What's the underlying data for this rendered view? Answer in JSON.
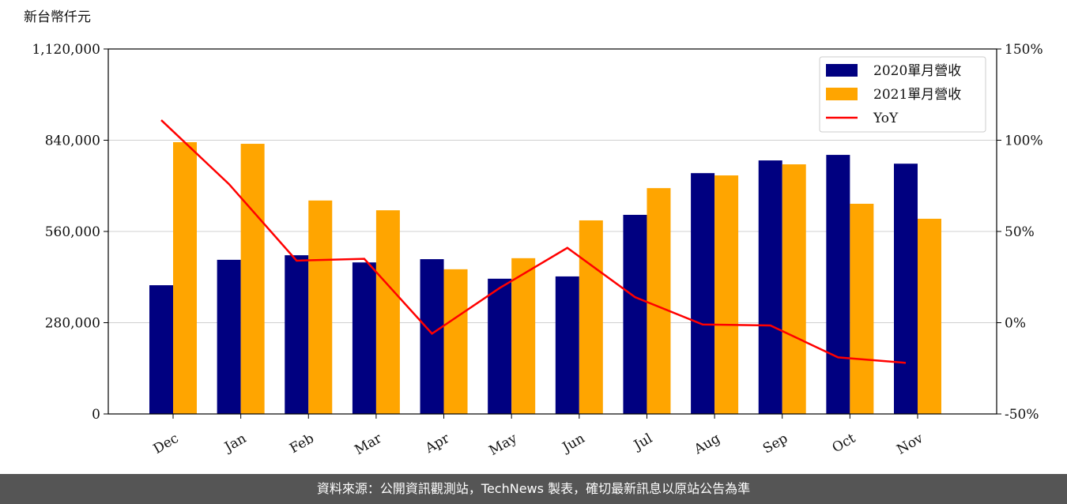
{
  "chart_data": {
    "type": "bar_line",
    "y_label": "新台幣仟元",
    "categories": [
      "Dec",
      "Jan",
      "Feb",
      "Mar",
      "Apr",
      "May",
      "Jun",
      "Jul",
      "Aug",
      "Sep",
      "Oct",
      "Nov"
    ],
    "series": [
      {
        "name": "2020單月營收",
        "color": "#000080",
        "type": "bar",
        "values": [
          395000,
          473000,
          487000,
          465000,
          475000,
          415000,
          422000,
          611000,
          739000,
          778000,
          795000,
          768000
        ]
      },
      {
        "name": "2021單月營收",
        "color": "#ffa500",
        "type": "bar",
        "values": [
          834000,
          829000,
          655000,
          625000,
          444000,
          478000,
          594000,
          693000,
          732000,
          766000,
          645000,
          599000
        ]
      },
      {
        "name": "YoY",
        "color": "#ff0000",
        "type": "line",
        "axis": "y2",
        "values": [
          111,
          76,
          34,
          35,
          -6,
          19,
          41,
          14,
          -1,
          -1.5,
          -19,
          -22
        ]
      }
    ],
    "ylim": [
      0,
      1120000
    ],
    "yticks": [
      0,
      {
        "value": 280000,
        "label": "280,000"
      },
      {
        "value": 560000,
        "label": "560,000"
      },
      {
        "value": 840000,
        "label": "840,000"
      },
      {
        "value": 1120000,
        "label": "1,120,000"
      }
    ],
    "y2lim": [
      -50,
      150
    ],
    "y2ticks": [
      {
        "value": -50,
        "label": "-50%"
      },
      {
        "value": 0,
        "label": "0%"
      },
      {
        "value": 50,
        "label": "50%"
      },
      {
        "value": 100,
        "label": "100%"
      },
      {
        "value": 150,
        "label": "150%"
      }
    ],
    "grid": true,
    "legend": "upper right",
    "footer": "資料來源：公開資訊觀測站，TechNews 製表，確切最新訊息以原站公告為準"
  }
}
